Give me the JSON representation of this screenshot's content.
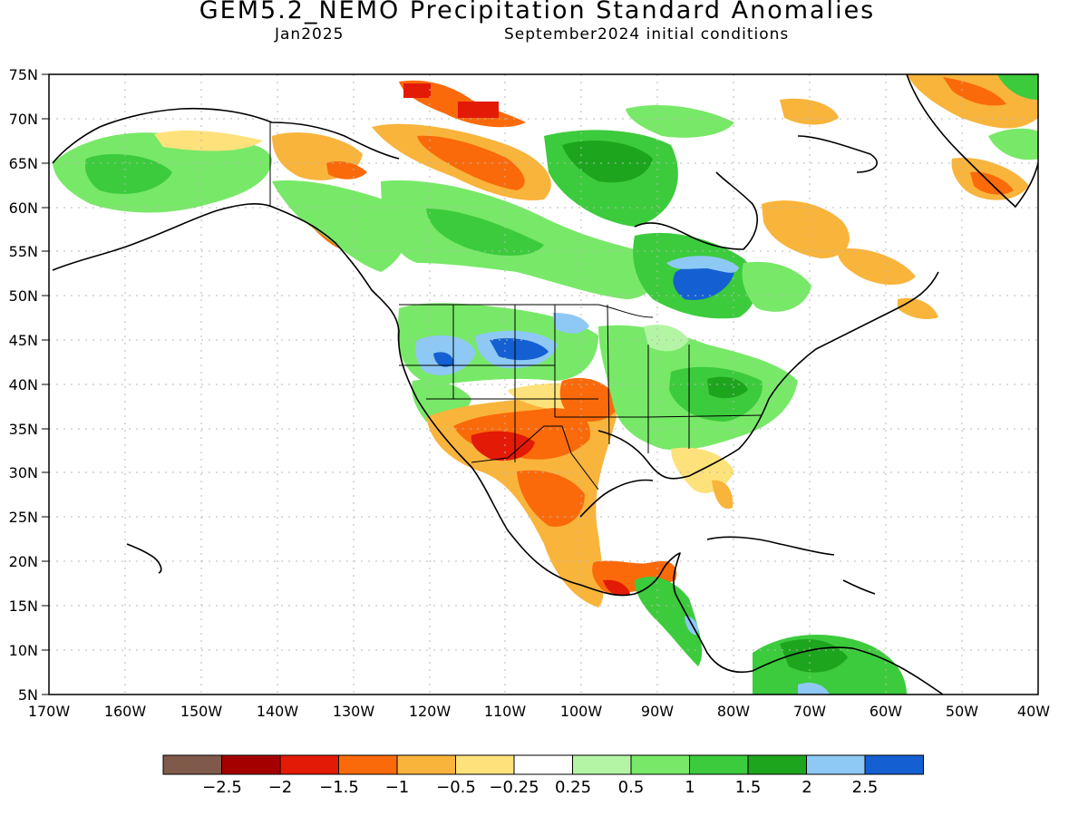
{
  "header": {
    "title": "GEM5.2_NEMO Precipitation Standard Anomalies",
    "valid": "Jan2025",
    "init": "September2024 initial conditions"
  },
  "map": {
    "lat_labels": [
      "75N",
      "70N",
      "65N",
      "60N",
      "55N",
      "50N",
      "45N",
      "40N",
      "35N",
      "30N",
      "25N",
      "20N",
      "15N",
      "10N",
      "5N"
    ],
    "lon_labels": [
      "170W",
      "160W",
      "150W",
      "140W",
      "130W",
      "120W",
      "110W",
      "100W",
      "90W",
      "80W",
      "70W",
      "60W",
      "50W",
      "40W"
    ],
    "lon_range": [
      -170,
      -40
    ],
    "lat_range": [
      5,
      75
    ],
    "anomaly_regions": [
      {
        "name": "southwest-us-mexico-dry",
        "value": -1.5,
        "lon": [
          -115,
          -100
        ],
        "lat": [
          28,
          36
        ]
      },
      {
        "name": "mexico-dry",
        "value": -1,
        "lon": [
          -110,
          -97
        ],
        "lat": [
          18,
          28
        ]
      },
      {
        "name": "northern-plains-wet",
        "value": 2.5,
        "lon": [
          -113,
          -103
        ],
        "lat": [
          42,
          46
        ]
      },
      {
        "name": "ohio-valley-wet",
        "value": 1.5,
        "lon": [
          -90,
          -76
        ],
        "lat": [
          36,
          42
        ]
      },
      {
        "name": "quebec-wet",
        "value": 2.5,
        "lon": [
          -86,
          -80
        ],
        "lat": [
          49,
          53
        ]
      },
      {
        "name": "canadian-arctic-dry",
        "value": -1.5,
        "lon": [
          -125,
          -105
        ],
        "lat": [
          62,
          70
        ]
      },
      {
        "name": "northern-south-america-wet",
        "value": 1.5,
        "lon": [
          -79,
          -62
        ],
        "lat": [
          5,
          11
        ]
      }
    ]
  },
  "legend": {
    "colors": [
      "#7f5a4b",
      "#a50000",
      "#e21a06",
      "#fa6a0a",
      "#f9b43c",
      "#fde27b",
      "#ffffff",
      "#b4f5a5",
      "#78e868",
      "#3ccb3c",
      "#1ea51e",
      "#8ec8f5",
      "#1460d2"
    ],
    "labels": [
      "−2.5",
      "−2",
      "−1.5",
      "−1",
      "−0.5",
      "−0.25",
      "0.25",
      "0.5",
      "1",
      "1.5",
      "2",
      "2.5"
    ]
  }
}
